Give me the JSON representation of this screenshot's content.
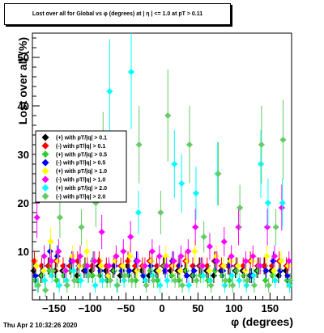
{
  "title": "Lost over all for Global vs φ (degrees) at | η | <= 1.0 at pT > 0.11",
  "datestamp": "Thu Apr  2 10:32:26 2020",
  "colors": {
    "black": "#000000",
    "red": "#ff0000",
    "green": "#33cc33",
    "blue": "#0000ff",
    "yellow": "#ffff00",
    "magenta": "#ff00ff",
    "cyan": "#00ffff",
    "lightgreen": "#66cc66"
  },
  "chart_data": {
    "type": "scatter",
    "xlabel": "φ (degrees)",
    "ylabel": "Lost over all (%)",
    "xlim": [
      -180,
      180
    ],
    "ylim": [
      0,
      55
    ],
    "xticks": [
      -150,
      -100,
      -50,
      0,
      50,
      100,
      150
    ],
    "yticks": [
      10,
      20,
      30,
      40,
      50
    ],
    "legend_position": "upper-left",
    "series": [
      {
        "name": "(+) with pT/|q| > 0.1",
        "color": "#000000",
        "x": [
          -175,
          -165,
          -155,
          -145,
          -135,
          -125,
          -115,
          -105,
          -95,
          -85,
          -75,
          -65,
          -55,
          -45,
          -35,
          -25,
          -15,
          -5,
          5,
          15,
          25,
          35,
          45,
          55,
          65,
          75,
          85,
          95,
          105,
          115,
          125,
          135,
          145,
          155,
          165,
          175
        ],
        "y": [
          6,
          5,
          7,
          6,
          6,
          7,
          5,
          6,
          6,
          7,
          6,
          6,
          5,
          7,
          6,
          6,
          5,
          6,
          7,
          6,
          6,
          6,
          5,
          7,
          6,
          5,
          6,
          7,
          6,
          6,
          5,
          6,
          7,
          6,
          5,
          6
        ]
      },
      {
        "name": "(-) with pT/|q| > 0.1",
        "color": "#ff0000",
        "x": [
          -175,
          -165,
          -155,
          -145,
          -135,
          -125,
          -115,
          -105,
          -95,
          -85,
          -75,
          -65,
          -55,
          -45,
          -35,
          -25,
          -15,
          -5,
          5,
          15,
          25,
          35,
          45,
          55,
          65,
          75,
          85,
          95,
          105,
          115,
          125,
          135,
          145,
          155,
          165,
          175
        ],
        "y": [
          8,
          7,
          7,
          8,
          7,
          7,
          8,
          7,
          7,
          8,
          7,
          7,
          7,
          8,
          7,
          7,
          8,
          7,
          7,
          7,
          7,
          8,
          7,
          7,
          7,
          8,
          7,
          7,
          7,
          7,
          8,
          7,
          7,
          7,
          8,
          7
        ]
      },
      {
        "name": "(+) with pT/|q| > 0.5",
        "color": "#33cc33",
        "x": [
          -175,
          -165,
          -155,
          -145,
          -135,
          -125,
          -115,
          -105,
          -95,
          -85,
          -75,
          -65,
          -55,
          -45,
          -35,
          -25,
          -15,
          -5,
          5,
          15,
          25,
          35,
          45,
          55,
          65,
          75,
          85,
          95,
          105,
          115,
          125,
          135,
          145,
          155,
          165,
          175
        ],
        "y": [
          4,
          5,
          6,
          4,
          5,
          6,
          4,
          7,
          5,
          5,
          4,
          6,
          6,
          5,
          4,
          5,
          6,
          4,
          7,
          5,
          4,
          6,
          5,
          5,
          4,
          6,
          5,
          4,
          6,
          5,
          5,
          6,
          4,
          5,
          6,
          4
        ]
      },
      {
        "name": "(-) with pT/|q| > 0.5",
        "color": "#0000ff",
        "x": [
          -175,
          -165,
          -155,
          -145,
          -135,
          -125,
          -115,
          -105,
          -95,
          -85,
          -75,
          -65,
          -55,
          -45,
          -35,
          -25,
          -15,
          -5,
          5,
          15,
          25,
          35,
          45,
          55,
          65,
          75,
          85,
          95,
          105,
          115,
          125,
          135,
          145,
          155,
          165,
          175
        ],
        "y": [
          5,
          6,
          10,
          9,
          6,
          8,
          7,
          6,
          8,
          6,
          5,
          7,
          6,
          6,
          8,
          5,
          7,
          6,
          6,
          8,
          7,
          5,
          6,
          7,
          6,
          8,
          6,
          7,
          7,
          6,
          5,
          7,
          6,
          8,
          6,
          5
        ]
      },
      {
        "name": "(+) with pT/|q| > 1.0",
        "color": "#ffff00",
        "x": [
          -175,
          -165,
          -155,
          -145,
          -135,
          -125,
          -115,
          -105,
          -95,
          -85,
          -75,
          -65,
          -55,
          -45,
          -35,
          -25,
          -15,
          -5,
          5,
          15,
          25,
          35,
          45,
          55,
          65,
          75,
          85,
          95,
          105,
          115,
          125,
          135,
          145,
          155,
          165,
          175
        ],
        "y": [
          7,
          6,
          12,
          8,
          6,
          9,
          7,
          10,
          8,
          7,
          5,
          8,
          7,
          9,
          6,
          7,
          8,
          6,
          9,
          7,
          6,
          8,
          10,
          7,
          6,
          9,
          7,
          8,
          7,
          6,
          8,
          7,
          9,
          6,
          8,
          7
        ]
      },
      {
        "name": "(-) with pT/|q| > 1.0",
        "color": "#ff00ff",
        "x": [
          -175,
          -165,
          -155,
          -145,
          -135,
          -125,
          -115,
          -105,
          -95,
          -85,
          -75,
          -65,
          -55,
          -45,
          -35,
          -25,
          -15,
          -5,
          5,
          15,
          25,
          35,
          45,
          55,
          65,
          75,
          85,
          95,
          105,
          115,
          125,
          135,
          145,
          155,
          165,
          175
        ],
        "y": [
          17,
          9,
          8,
          10,
          6,
          8,
          9,
          7,
          8,
          14,
          7,
          9,
          10,
          13,
          8,
          7,
          10,
          9,
          7,
          8,
          9,
          10,
          15,
          7,
          11,
          8,
          12,
          9,
          15,
          8,
          9,
          7,
          15,
          9,
          19,
          8
        ]
      },
      {
        "name": "(+) with pT/|q| > 2.0",
        "color": "#00ffff",
        "x": [
          -175,
          -165,
          -155,
          -145,
          -135,
          -125,
          -115,
          -105,
          -95,
          -85,
          -75,
          -65,
          -55,
          -45,
          -35,
          -25,
          -15,
          -5,
          5,
          15,
          25,
          35,
          45,
          55,
          65,
          75,
          85,
          95,
          105,
          115,
          125,
          135,
          145,
          155,
          165,
          175
        ],
        "y": [
          3,
          4,
          5,
          3,
          4,
          6,
          4,
          5,
          3,
          4,
          43,
          3,
          4,
          47,
          18,
          4,
          5,
          3,
          4,
          28,
          24,
          3,
          22,
          5,
          4,
          26,
          3,
          5,
          4,
          3,
          5,
          28,
          20,
          4,
          20,
          3
        ]
      },
      {
        "name": "(-) with pT/|q| > 2.0",
        "color": "#66cc66",
        "x": [
          -175,
          -165,
          -155,
          -145,
          -135,
          -125,
          -115,
          -105,
          -95,
          -85,
          -75,
          -65,
          -55,
          -45,
          -35,
          -25,
          -15,
          -5,
          5,
          15,
          25,
          35,
          45,
          55,
          65,
          75,
          85,
          95,
          105,
          115,
          125,
          135,
          145,
          155,
          165,
          175
        ],
        "y": [
          3,
          2,
          6,
          17,
          3,
          4,
          15,
          5,
          20,
          31,
          4,
          3,
          5,
          4,
          32,
          3,
          4,
          18,
          38,
          4,
          3,
          32,
          4,
          13,
          3,
          26,
          4,
          3,
          19,
          4,
          3,
          32,
          3,
          15,
          33,
          4
        ]
      }
    ]
  }
}
